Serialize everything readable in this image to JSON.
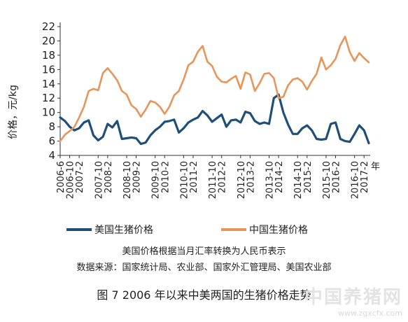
{
  "chart_data": {
    "type": "line",
    "ylabel": "价格，元/kg",
    "xunit": "年",
    "ylim": [
      4,
      22
    ],
    "yticks": [
      4,
      6,
      8,
      10,
      12,
      14,
      16,
      18,
      20,
      22
    ],
    "grid": false,
    "xrange": [
      "2006-6",
      "2017-4"
    ],
    "xtick_labels": [
      "2006-6",
      "2006-10",
      "2007-2",
      "2007-10",
      "2008-2",
      "2008-10",
      "2009-2",
      "2009-10",
      "2010-2",
      "2010-10",
      "2011-2",
      "2011-10",
      "2012-2",
      "2012-10",
      "2013-2",
      "2013-10",
      "2014-2",
      "2014-10",
      "2015-2",
      "2015-10",
      "2016-2",
      "2016-10",
      "2017-2"
    ],
    "series": [
      {
        "name": "美国生猪价格",
        "color": "#1f4e79",
        "x": [
          "2006-6",
          "2006-8",
          "2006-10",
          "2006-12",
          "2007-2",
          "2007-4",
          "2007-6",
          "2007-8",
          "2007-10",
          "2007-12",
          "2008-2",
          "2008-4",
          "2008-6",
          "2008-8",
          "2008-10",
          "2008-12",
          "2009-2",
          "2009-4",
          "2009-6",
          "2009-8",
          "2009-10",
          "2009-12",
          "2010-2",
          "2010-4",
          "2010-6",
          "2010-8",
          "2010-10",
          "2010-12",
          "2011-2",
          "2011-4",
          "2011-6",
          "2011-8",
          "2011-10",
          "2011-12",
          "2012-2",
          "2012-4",
          "2012-6",
          "2012-8",
          "2012-10",
          "2012-12",
          "2013-2",
          "2013-4",
          "2013-6",
          "2013-8",
          "2013-10",
          "2013-12",
          "2014-2",
          "2014-4",
          "2014-6",
          "2014-8",
          "2014-10",
          "2014-12",
          "2015-2",
          "2015-4",
          "2015-6",
          "2015-8",
          "2015-10",
          "2015-12",
          "2016-2",
          "2016-4",
          "2016-6",
          "2016-8",
          "2016-10",
          "2016-12",
          "2017-2",
          "2017-4"
        ],
        "values": [
          9.3,
          8.8,
          8.0,
          7.5,
          7.8,
          8.6,
          8.9,
          6.8,
          6.1,
          6.6,
          8.4,
          7.9,
          8.8,
          6.3,
          6.4,
          6.5,
          6.4,
          5.6,
          5.8,
          6.8,
          7.5,
          8.0,
          8.7,
          8.8,
          9.0,
          7.2,
          7.8,
          8.6,
          9.0,
          9.3,
          10.2,
          9.6,
          8.7,
          9.2,
          9.7,
          8.0,
          8.9,
          9.0,
          8.6,
          10.1,
          9.9,
          8.8,
          8.4,
          8.6,
          8.4,
          12.0,
          12.5,
          10.0,
          8.3,
          7.0,
          7.0,
          7.8,
          8.2,
          7.5,
          6.3,
          6.2,
          6.3,
          8.4,
          8.6,
          6.3,
          6.0,
          5.9,
          7.0,
          8.2,
          7.5,
          5.7
        ]
      },
      {
        "name": "中国生猪价格",
        "color": "#e8955a",
        "x": [
          "2006-6",
          "2006-8",
          "2006-10",
          "2006-12",
          "2007-2",
          "2007-4",
          "2007-6",
          "2007-8",
          "2007-10",
          "2007-12",
          "2008-2",
          "2008-4",
          "2008-6",
          "2008-8",
          "2008-10",
          "2008-12",
          "2009-2",
          "2009-4",
          "2009-6",
          "2009-8",
          "2009-10",
          "2009-12",
          "2010-2",
          "2010-4",
          "2010-6",
          "2010-8",
          "2010-10",
          "2010-12",
          "2011-2",
          "2011-4",
          "2011-6",
          "2011-8",
          "2011-10",
          "2011-12",
          "2012-2",
          "2012-4",
          "2012-6",
          "2012-8",
          "2012-10",
          "2012-12",
          "2013-2",
          "2013-4",
          "2013-6",
          "2013-8",
          "2013-10",
          "2013-12",
          "2014-2",
          "2014-4",
          "2014-6",
          "2014-8",
          "2014-10",
          "2014-12",
          "2015-2",
          "2015-4",
          "2015-6",
          "2015-8",
          "2015-10",
          "2015-12",
          "2016-2",
          "2016-4",
          "2016-6",
          "2016-8",
          "2016-10",
          "2016-12",
          "2017-2",
          "2017-4"
        ],
        "values": [
          6.0,
          6.9,
          7.4,
          8.0,
          9.3,
          10.8,
          13.0,
          13.3,
          13.1,
          15.5,
          16.2,
          15.4,
          14.5,
          13.0,
          12.5,
          11.0,
          10.5,
          9.4,
          10.4,
          11.6,
          11.4,
          10.8,
          9.8,
          10.8,
          12.4,
          13.0,
          14.6,
          16.6,
          17.1,
          18.5,
          19.3,
          17.1,
          16.5,
          15.0,
          14.3,
          14.2,
          14.7,
          15.1,
          13.3,
          15.6,
          15.3,
          13.0,
          14.1,
          15.4,
          15.5,
          14.8,
          12.0,
          12.2,
          13.8,
          14.6,
          14.8,
          14.3,
          13.2,
          14.4,
          15.4,
          17.7,
          16.0,
          16.6,
          17.5,
          19.4,
          20.6,
          18.4,
          17.2,
          18.3,
          17.6,
          17.0
        ]
      }
    ]
  },
  "notes": {
    "line1": "美国价格根据当月汇率转换为人民币表示",
    "line2": "数据来源：国家统计局、农业部、国家外汇管理局、美国农业部"
  },
  "caption": "图 7   2006 年以来中美两国的生猪价格走势",
  "watermark": {
    "big": "中国养猪网",
    "url": "www.zgxcfx.com"
  }
}
